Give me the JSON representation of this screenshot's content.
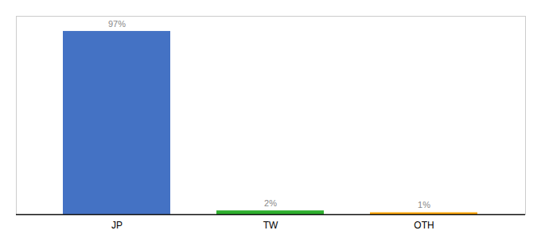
{
  "chart_data": {
    "type": "bar",
    "categories": [
      "JP",
      "TW",
      "OTH"
    ],
    "values": [
      97,
      2,
      1
    ],
    "value_labels": [
      "97%",
      "2%",
      "1%"
    ],
    "colors": [
      "#4472C4",
      "#2EAF2E",
      "#FFA500"
    ],
    "ylim": [
      0,
      105
    ],
    "data_labels": true,
    "tick_labels": "x",
    "grid": false
  }
}
